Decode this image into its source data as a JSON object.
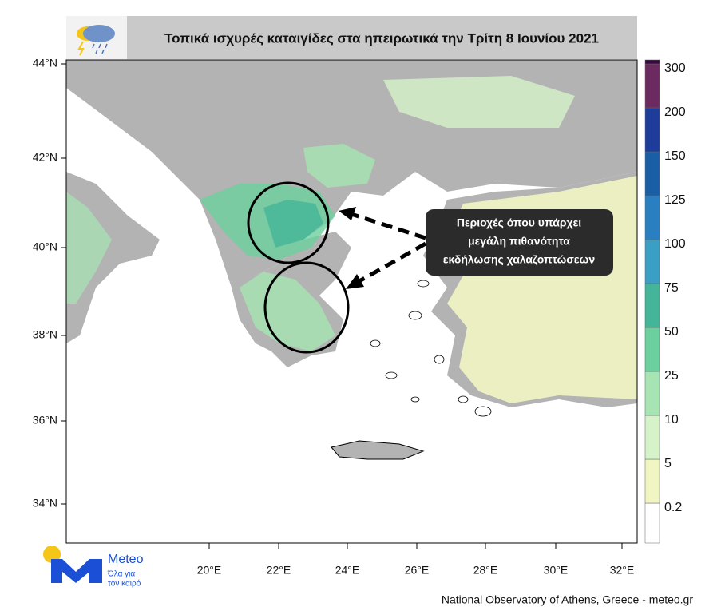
{
  "header": {
    "title": "Τοπικά ισχυρές καταιγίδες στα ηπειρωτικά την Τρίτη 8 Ιουνίου 2021"
  },
  "map": {
    "lat_labels": [
      "44°N",
      "42°N",
      "40°N",
      "38°N",
      "36°N",
      "34°N"
    ],
    "lon_labels": [
      "20°E",
      "22°E",
      "24°E",
      "26°E",
      "28°E",
      "30°E",
      "32°E"
    ]
  },
  "legend": {
    "levels": [
      0.2,
      5,
      10,
      25,
      50,
      75,
      100,
      125,
      150,
      200,
      300
    ],
    "colors": [
      "#ffffff",
      "#f1f5c2",
      "#d6f2c9",
      "#a6e5b3",
      "#6ccf9e",
      "#44b598",
      "#3a9fc4",
      "#2a7fc0",
      "#1a5ea6",
      "#1e3d9b",
      "#6b2b60",
      "#36093f"
    ]
  },
  "annotation": {
    "lines": [
      "Περιοχές όπου υπάρχει",
      "μεγάλη πιθανότητα",
      "εκδήλωσης χαλαζοπτώσεων"
    ]
  },
  "logo": {
    "name": "Meteo",
    "tagline": [
      "Όλα για",
      "τον καιρό"
    ]
  },
  "footer": "National Observatory of Athens, Greece - meteo.gr"
}
